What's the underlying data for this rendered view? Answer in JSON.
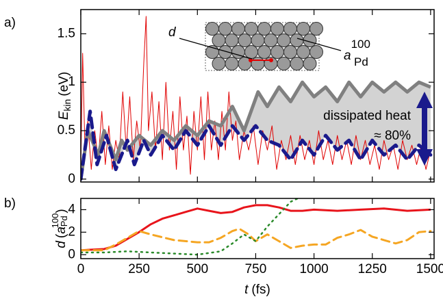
{
  "chart_data": [
    {
      "type": "line",
      "panel_label": "a)",
      "ylabel": {
        "symbol": "E",
        "subscript": "kin",
        "unit": "(eV)"
      },
      "xlim": [
        0,
        1515
      ],
      "ylim": [
        -0.03,
        1.75
      ],
      "xticks": [
        0,
        250,
        500,
        750,
        1000,
        1250,
        1500
      ],
      "yticks": [
        0,
        0.5,
        1,
        1.5
      ],
      "inset": {
        "d_label": "d",
        "a_symbol": "a",
        "a_subscript": "Pd",
        "a_superscript": "100"
      },
      "annotation": {
        "line1": "dissipated heat",
        "line2": "≈ 80%",
        "color": "#1a1a8c"
      },
      "fill_color": "#d3d3d3",
      "series": [
        {
          "color": "#e00000",
          "width": 1,
          "dash": "none",
          "x": [
            0,
            8,
            18,
            30,
            45,
            60,
            75,
            90,
            105,
            120,
            135,
            150,
            165,
            180,
            195,
            210,
            225,
            240,
            255,
            270,
            280,
            290,
            305,
            320,
            335,
            350,
            365,
            380,
            395,
            410,
            425,
            440,
            455,
            470,
            485,
            500,
            515,
            530,
            545,
            560,
            575,
            590,
            605,
            620,
            635,
            650,
            665,
            680,
            700,
            720,
            740,
            760,
            780,
            800,
            820,
            840,
            860,
            880,
            900,
            920,
            940,
            960,
            980,
            1000,
            1020,
            1040,
            1060,
            1080,
            1100,
            1120,
            1140,
            1160,
            1180,
            1200,
            1220,
            1240,
            1260,
            1280,
            1300,
            1320,
            1340,
            1360,
            1380,
            1400,
            1420,
            1440,
            1460,
            1480,
            1500
          ],
          "values": [
            0.1,
            1.3,
            0.3,
            0.6,
            0.1,
            0.5,
            0.2,
            0.7,
            0.15,
            0.55,
            0.1,
            0.4,
            0.2,
            0.9,
            0.3,
            0.85,
            0.2,
            0.6,
            0.3,
            1.2,
            1.68,
            0.5,
            0.9,
            0.3,
            0.8,
            0.2,
            1.0,
            0.3,
            0.7,
            0.1,
            0.85,
            0.3,
            0.65,
            0.05,
            0.7,
            0.3,
            0.85,
            0.2,
            0.9,
            0.3,
            0.6,
            0.2,
            0.7,
            0.3,
            0.9,
            0.4,
            0.6,
            0.2,
            0.5,
            0.3,
            0.55,
            0.15,
            0.5,
            0.3,
            0.55,
            0.1,
            0.4,
            0.2,
            0.45,
            0.15,
            0.45,
            0.2,
            0.4,
            0.15,
            0.5,
            0.2,
            0.4,
            0.15,
            0.45,
            0.2,
            0.4,
            0.15,
            0.45,
            0.2,
            0.4,
            0.15,
            0.35,
            0.1,
            0.4,
            0.2,
            0.35,
            0.1,
            0.4,
            0.2,
            0.35,
            0.15,
            0.35,
            0.1,
            0.3
          ]
        },
        {
          "color": "#808080",
          "width": 5,
          "dash": "none",
          "x": [
            0,
            30,
            75,
            100,
            150,
            175,
            200,
            250,
            300,
            350,
            400,
            450,
            500,
            550,
            600,
            650,
            700,
            760,
            800,
            850,
            900,
            950,
            1000,
            1050,
            1100,
            1150,
            1200,
            1250,
            1300,
            1350,
            1400,
            1450,
            1500
          ],
          "values": [
            0,
            0.5,
            0.25,
            0.5,
            0.2,
            0.4,
            0.3,
            0.45,
            0.35,
            0.5,
            0.4,
            0.55,
            0.45,
            0.6,
            0.55,
            0.75,
            0.5,
            0.9,
            0.75,
            0.95,
            0.8,
            1.0,
            0.85,
            0.95,
            0.8,
            1.0,
            0.85,
            1.0,
            0.9,
            1.0,
            0.9,
            1.0,
            0.95
          ]
        },
        {
          "color": "#1a1a8c",
          "width": 5,
          "dash": "14 8",
          "x": [
            0,
            40,
            70,
            110,
            150,
            200,
            230,
            270,
            300,
            350,
            400,
            450,
            500,
            550,
            600,
            650,
            700,
            750,
            800,
            850,
            900,
            950,
            1000,
            1050,
            1100,
            1150,
            1200,
            1250,
            1300,
            1350,
            1400,
            1450,
            1500
          ],
          "values": [
            0,
            0.7,
            0.15,
            0.45,
            0.1,
            0.4,
            0.15,
            0.4,
            0.25,
            0.45,
            0.3,
            0.5,
            0.35,
            0.55,
            0.35,
            0.55,
            0.4,
            0.55,
            0.4,
            0.35,
            0.2,
            0.4,
            0.25,
            0.45,
            0.3,
            0.4,
            0.2,
            0.4,
            0.25,
            0.35,
            0.2,
            0.35,
            0.25
          ]
        }
      ]
    },
    {
      "type": "line",
      "panel_label": "b)",
      "ylabel": {
        "symbol": "d",
        "open": "(",
        "a_symbol": "a",
        "a_subscript": "Pd",
        "a_superscript": "100",
        "close": ")"
      },
      "xlabel": {
        "symbol": "t",
        "unit": "(fs)"
      },
      "xlim": [
        0,
        1515
      ],
      "ylim": [
        -0.35,
        5
      ],
      "xticks": [
        0,
        250,
        500,
        750,
        1000,
        1250,
        1500
      ],
      "yticks": [
        0,
        2,
        4
      ],
      "series": [
        {
          "color": "#e8141b",
          "width": 3,
          "dash": "none",
          "x": [
            0,
            100,
            150,
            200,
            250,
            300,
            350,
            400,
            450,
            500,
            550,
            600,
            650,
            700,
            750,
            800,
            850,
            900,
            950,
            1000,
            1100,
            1200,
            1300,
            1400,
            1500
          ],
          "values": [
            0.4,
            0.5,
            0.8,
            1.4,
            2.0,
            2.7,
            3.2,
            3.5,
            3.8,
            4.1,
            3.9,
            3.7,
            3.8,
            4.2,
            4.4,
            4.4,
            4.2,
            3.9,
            3.9,
            4.0,
            3.9,
            4.0,
            4.1,
            3.9,
            4.0
          ]
        },
        {
          "color": "#f5a623",
          "width": 3,
          "dash": "12 7",
          "x": [
            0,
            100,
            150,
            200,
            250,
            300,
            400,
            500,
            550,
            600,
            650,
            680,
            720,
            750,
            800,
            850,
            900,
            950,
            1000,
            1050,
            1100,
            1150,
            1200,
            1250,
            1300,
            1350,
            1400,
            1450,
            1500
          ],
          "values": [
            0.4,
            0.4,
            0.9,
            1.5,
            2.1,
            1.8,
            1.3,
            1.1,
            1.1,
            1.5,
            2.1,
            2.3,
            1.8,
            1.2,
            1.8,
            1.2,
            0.6,
            0.8,
            0.9,
            0.9,
            1.5,
            1.8,
            2.2,
            1.6,
            1.3,
            1.0,
            1.3,
            2.0,
            2.1
          ]
        },
        {
          "color": "#2a8a2a",
          "width": 2.5,
          "dash": "2 6",
          "x": [
            0,
            100,
            200,
            300,
            400,
            500,
            600,
            650,
            700,
            750,
            800,
            850,
            900,
            930
          ],
          "values": [
            0.2,
            0.2,
            0.3,
            0.2,
            0.1,
            0,
            0.3,
            1.0,
            1.8,
            1.2,
            2.5,
            3.6,
            4.7,
            5.0
          ]
        }
      ]
    }
  ]
}
